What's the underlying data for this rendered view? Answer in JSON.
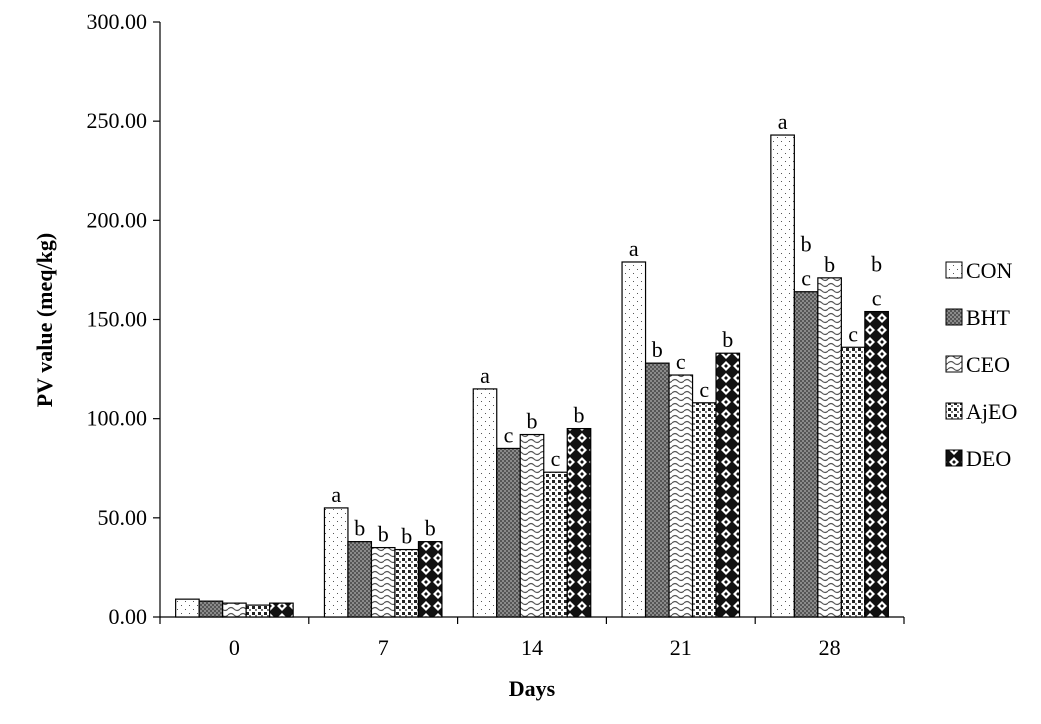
{
  "chart_data": {
    "type": "bar",
    "title": "",
    "xlabel": "Days",
    "ylabel": "PV value (meq/kg)",
    "ylim": [
      0,
      300
    ],
    "yticks": [
      "0.00",
      "50.00",
      "100.00",
      "150.00",
      "200.00",
      "250.00",
      "300.00"
    ],
    "categories": [
      "0",
      "7",
      "14",
      "21",
      "28"
    ],
    "legend_position": "right",
    "series": [
      {
        "name": "CON",
        "values": [
          9,
          55,
          115,
          179,
          243
        ],
        "letters": [
          "",
          "a",
          "a",
          "a",
          "a"
        ]
      },
      {
        "name": "BHT",
        "values": [
          8,
          38,
          85,
          128,
          164
        ],
        "letters": [
          "",
          "b",
          "c",
          "b",
          "c"
        ]
      },
      {
        "name": "CEO",
        "values": [
          7,
          35,
          92,
          122,
          171
        ],
        "letters": [
          "",
          "b",
          "b",
          "c",
          "b"
        ]
      },
      {
        "name": "AjEO",
        "values": [
          6,
          34,
          73,
          108,
          136
        ],
        "letters": [
          "",
          "b",
          "c",
          "c",
          "c"
        ]
      },
      {
        "name": "DEO",
        "values": [
          7,
          38,
          95,
          133,
          154
        ],
        "letters": [
          "",
          "b",
          "b",
          "b",
          "c"
        ]
      }
    ],
    "extra_letters": [
      {
        "category": "28",
        "series": "BHT",
        "letter": "b"
      },
      {
        "category": "28",
        "series": "DEO",
        "letter": "b"
      }
    ]
  }
}
